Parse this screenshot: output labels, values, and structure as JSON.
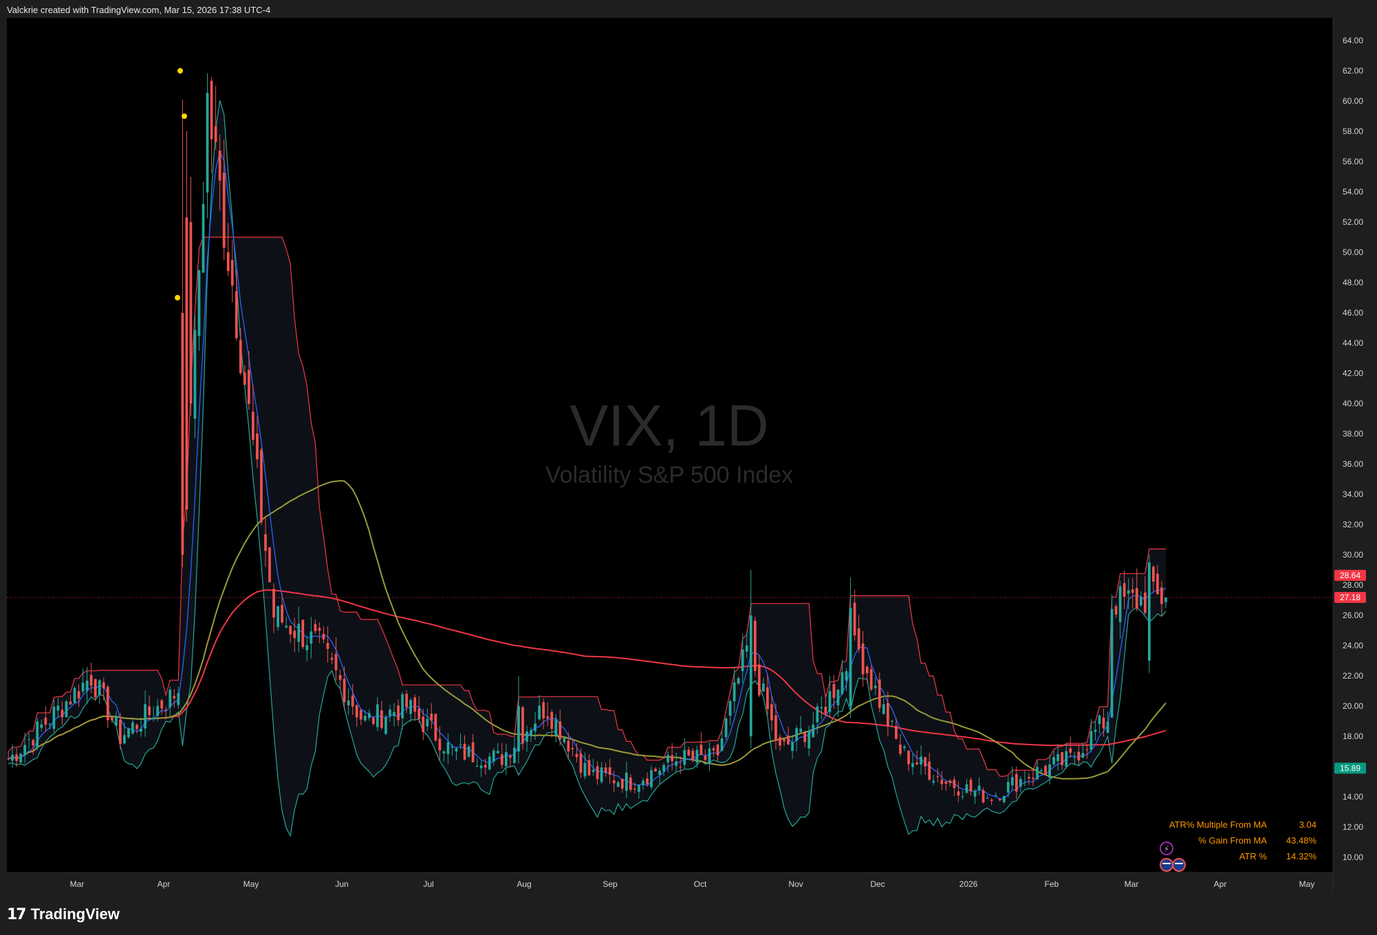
{
  "header": {
    "text": "Valckrie created with TradingView.com, Mar 15, 2026 17:38 UTC-4"
  },
  "watermark": {
    "symbol": "VIX, 1D",
    "description": "Volatility S&P 500 Index"
  },
  "footer": {
    "brand": "TradingView",
    "logo_glyph": "17"
  },
  "stats": [
    {
      "label": "ATR% Multiple From MA",
      "value": "3.04"
    },
    {
      "label": "% Gain From MA",
      "value": "43.48%"
    },
    {
      "label": "ATR %",
      "value": "14.32%"
    }
  ],
  "price_badges": [
    {
      "value": "28.64",
      "color": "#f23645"
    },
    {
      "value": "27.18",
      "color": "#f23645"
    },
    {
      "value": "15.89",
      "color": "#089981"
    }
  ],
  "icons": [
    "lightning-icon",
    "us-flag-icon"
  ],
  "chart_data": {
    "type": "candlestick",
    "symbol": "VIX",
    "interval": "1D",
    "ylim": [
      9,
      65.5
    ],
    "y_ticks": [
      "10.00",
      "12.00",
      "14.00",
      "16.00",
      "18.00",
      "20.00",
      "22.00",
      "24.00",
      "26.00",
      "28.00",
      "30.00",
      "32.00",
      "34.00",
      "36.00",
      "38.00",
      "40.00",
      "42.00",
      "44.00",
      "46.00",
      "48.00",
      "50.00",
      "52.00",
      "54.00",
      "56.00",
      "58.00",
      "60.00",
      "62.00",
      "64.00"
    ],
    "x_ticks": [
      "Mar",
      "Apr",
      "May",
      "Jun",
      "Jul",
      "Aug",
      "Sep",
      "Oct",
      "Nov",
      "Dec",
      "2026",
      "Feb",
      "Mar",
      "Apr",
      "May"
    ],
    "last_close": 27.18,
    "grid": false,
    "colors": {
      "up": "#26a69a",
      "down": "#ef5350",
      "ma_fast": "#2962ff",
      "ma_mid": "#9b9a3a",
      "ma_slow": "#f23645",
      "band_upper": "#f23645",
      "band_lower": "#26a69a"
    },
    "anchors": [
      {
        "x": "Feb",
        "value": 16.5
      },
      {
        "x": "Mar",
        "value": 22
      },
      {
        "x": "Mar",
        "value": 18
      },
      {
        "x": "Apr",
        "value": 21
      },
      {
        "x": "Apr",
        "value": 60
      },
      {
        "x": "Apr",
        "value": 46
      },
      {
        "x": "May",
        "value": 26
      },
      {
        "x": "May",
        "value": 24
      },
      {
        "x": "Jun",
        "value": 19
      },
      {
        "x": "Jun",
        "value": 20
      },
      {
        "x": "Jul",
        "value": 17
      },
      {
        "x": "Jul",
        "value": 16.5
      },
      {
        "x": "Aug",
        "value": 20
      },
      {
        "x": "Aug",
        "value": 15.5
      },
      {
        "x": "Sep",
        "value": 15
      },
      {
        "x": "Sep",
        "value": 16.5
      },
      {
        "x": "Oct",
        "value": 16.5
      },
      {
        "x": "Oct",
        "value": 24
      },
      {
        "x": "Oct",
        "value": 17
      },
      {
        "x": "Nov",
        "value": 19
      },
      {
        "x": "Nov",
        "value": 24
      },
      {
        "x": "Dec",
        "value": 17
      },
      {
        "x": "Dec",
        "value": 15
      },
      {
        "x": "2026",
        "value": 14
      },
      {
        "x": "2026",
        "value": 15.5
      },
      {
        "x": "Feb",
        "value": 16.5
      },
      {
        "x": "Feb",
        "value": 19.5
      },
      {
        "x": "Mar",
        "value": 21
      },
      {
        "x": "Mar",
        "value": 27.18
      }
    ]
  }
}
